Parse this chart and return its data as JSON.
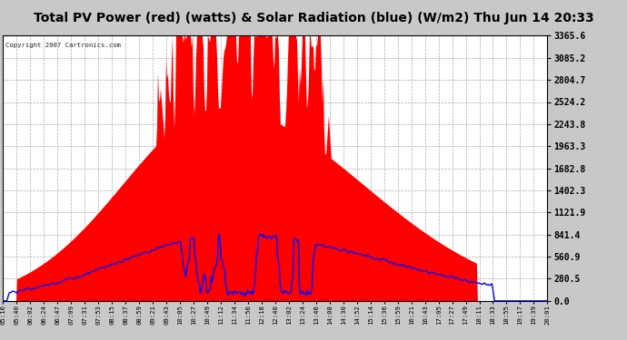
{
  "title": "Total PV Power (red) (watts) & Solar Radiation (blue) (W/m2) Thu Jun 14 20:33",
  "copyright": "Copyright 2007 Cartronics.com",
  "ylabel_right_ticks": [
    0.0,
    280.5,
    560.9,
    841.4,
    1121.9,
    1402.3,
    1682.8,
    1963.3,
    2243.8,
    2524.2,
    2804.7,
    3085.2,
    3365.6
  ],
  "y_max": 3365.6,
  "y_min": 0.0,
  "fill_color": "#ff0000",
  "line_color": "#0000ff",
  "title_bg": "#c8c8c8",
  "plot_bg": "#ffffff",
  "grid_color": "#aaaaaa",
  "x_labels": [
    "05:16",
    "05:40",
    "06:02",
    "06:24",
    "06:47",
    "07:09",
    "07:31",
    "07:53",
    "08:15",
    "08:37",
    "08:59",
    "09:21",
    "09:43",
    "10:05",
    "10:27",
    "10:49",
    "11:12",
    "11:34",
    "11:56",
    "12:18",
    "12:40",
    "13:02",
    "13:24",
    "13:46",
    "14:08",
    "14:30",
    "14:52",
    "15:14",
    "15:36",
    "15:59",
    "16:21",
    "16:43",
    "17:05",
    "17:27",
    "17:49",
    "18:11",
    "18:33",
    "18:55",
    "19:17",
    "19:39",
    "20:01"
  ]
}
